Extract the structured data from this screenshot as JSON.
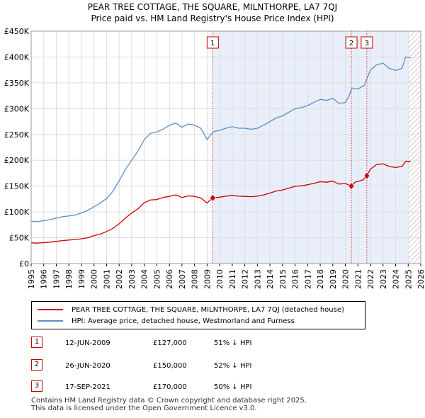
{
  "title_line1": "PEAR TREE COTTAGE, THE SQUARE, MILNTHORPE, LA7 7QJ",
  "title_line2": "Price paid vs. HM Land Registry's House Price Index (HPI)",
  "colors": {
    "price": "#cc0000",
    "hpi": "#5b8fc9",
    "shade": "#e8eefa",
    "grid": "#dddddd",
    "marker": "#cc0000"
  },
  "chart_data": {
    "type": "line",
    "title": "Price paid vs. HM Land Registry's House Price Index (HPI)",
    "xlim": [
      1995,
      2026
    ],
    "ylim": [
      0,
      450000
    ],
    "y_ticks": [
      0,
      50000,
      100000,
      150000,
      200000,
      250000,
      300000,
      350000,
      400000,
      450000
    ],
    "y_tick_labels": [
      "£0",
      "£50K",
      "£100K",
      "£150K",
      "£200K",
      "£250K",
      "£300K",
      "£350K",
      "£400K",
      "£450K"
    ],
    "x_ticks": [
      1995,
      1996,
      1997,
      1998,
      1999,
      2000,
      2001,
      2002,
      2003,
      2004,
      2005,
      2006,
      2007,
      2008,
      2009,
      2010,
      2011,
      2012,
      2013,
      2014,
      2015,
      2016,
      2017,
      2018,
      2019,
      2020,
      2021,
      2022,
      2023,
      2024,
      2025,
      2026
    ],
    "x_tick_labels": [
      "1995",
      "1996",
      "1997",
      "1998",
      "1999",
      "2000",
      "2001",
      "2002",
      "2003",
      "2004",
      "2005",
      "2006",
      "2007",
      "2008",
      "2009",
      "2010",
      "2011",
      "2012",
      "2013",
      "2014",
      "2015",
      "2016",
      "2017",
      "2018",
      "2019",
      "2020",
      "2021",
      "2022",
      "2023",
      "2024",
      "2025",
      "2026"
    ],
    "shaded_from": 2009.45,
    "hatched_from": 2025.0,
    "series": [
      {
        "name": "HPI: Average price, detached house, Westmorland and Furness",
        "x": [
          1995,
          1995.5,
          1996,
          1996.5,
          1997,
          1997.5,
          1998,
          1998.5,
          1999,
          1999.5,
          2000,
          2000.5,
          2001,
          2001.5,
          2002,
          2002.5,
          2003,
          2003.5,
          2004,
          2004.5,
          2005,
          2005.5,
          2006,
          2006.5,
          2007,
          2007.5,
          2008,
          2008.5,
          2009,
          2009.3,
          2009.6,
          2010,
          2010.5,
          2011,
          2011.5,
          2012,
          2012.5,
          2013,
          2013.5,
          2014,
          2014.5,
          2015,
          2015.5,
          2016,
          2016.5,
          2017,
          2017.5,
          2018,
          2018.5,
          2019,
          2019.5,
          2020,
          2020.3,
          2020.5,
          2021,
          2021.5,
          2022,
          2022.5,
          2023,
          2023.5,
          2024,
          2024.5,
          2024.8,
          2025.2
        ],
        "values": [
          82000,
          81000,
          83000,
          85000,
          88000,
          91000,
          92000,
          94000,
          98000,
          103000,
          110000,
          117000,
          126000,
          140000,
          160000,
          182000,
          200000,
          218000,
          240000,
          252000,
          255000,
          260000,
          268000,
          272000,
          264000,
          270000,
          268000,
          262000,
          240000,
          250000,
          256000,
          258000,
          262000,
          265000,
          262000,
          262000,
          260000,
          262000,
          268000,
          275000,
          282000,
          286000,
          293000,
          300000,
          302000,
          306000,
          312000,
          318000,
          316000,
          320000,
          310000,
          312000,
          325000,
          340000,
          338000,
          345000,
          375000,
          385000,
          388000,
          378000,
          374000,
          378000,
          400000,
          398000
        ]
      },
      {
        "name": "PEAR TREE COTTAGE, THE SQUARE, MILNTHORPE, LA7 7QJ (detached house)",
        "x": [
          1995,
          1995.5,
          1996,
          1996.5,
          1997,
          1997.5,
          1998,
          1998.5,
          1999,
          1999.5,
          2000,
          2000.5,
          2001,
          2001.5,
          2002,
          2002.5,
          2003,
          2003.5,
          2004,
          2004.5,
          2005,
          2005.5,
          2006,
          2006.5,
          2007,
          2007.5,
          2008,
          2008.5,
          2009,
          2009.2,
          2009.45,
          2010,
          2010.5,
          2011,
          2011.5,
          2012,
          2012.5,
          2013,
          2013.5,
          2014,
          2014.5,
          2015,
          2015.5,
          2016,
          2016.5,
          2017,
          2017.5,
          2018,
          2018.5,
          2019,
          2019.5,
          2020,
          2020.48,
          2020.8,
          2021,
          2021.4,
          2021.71,
          2022,
          2022.5,
          2023,
          2023.5,
          2024,
          2024.5,
          2024.8,
          2025.2
        ],
        "values": [
          40000,
          39500,
          40500,
          41500,
          43000,
          44500,
          45500,
          46500,
          48000,
          50000,
          54000,
          57000,
          62000,
          68000,
          77000,
          88000,
          98000,
          106000,
          118000,
          123000,
          124000,
          128000,
          130000,
          133000,
          128000,
          131000,
          130000,
          127000,
          117000,
          122000,
          127000,
          128500,
          130500,
          132000,
          130500,
          130000,
          129500,
          130500,
          133000,
          136500,
          140500,
          142500,
          146000,
          149500,
          150500,
          152500,
          155500,
          158500,
          157500,
          159500,
          154000,
          155000,
          150000,
          158000,
          159000,
          162000,
          170000,
          183000,
          192000,
          193000,
          188000,
          186000,
          188000,
          198000,
          198000
        ]
      }
    ],
    "sales": [
      {
        "label": "1",
        "date": "12-JUN-2009",
        "x": 2009.45,
        "price": 127000,
        "pct": "51% ↓ HPI"
      },
      {
        "label": "2",
        "date": "26-JUN-2020",
        "x": 2020.48,
        "price": 150000,
        "pct": "52% ↓ HPI"
      },
      {
        "label": "3",
        "date": "17-SEP-2021",
        "x": 2021.71,
        "price": 170000,
        "pct": "50% ↓ HPI"
      }
    ],
    "sale_price_labels": [
      "£127,000",
      "£150,000",
      "£170,000"
    ]
  },
  "legend": {
    "price_label": "PEAR TREE COTTAGE, THE SQUARE, MILNTHORPE, LA7 7QJ (detached house)",
    "hpi_label": "HPI: Average price, detached house, Westmorland and Furness"
  },
  "footer_line1": "Contains HM Land Registry data © Crown copyright and database right 2025.",
  "footer_line2": "This data is licensed under the Open Government Licence v3.0."
}
